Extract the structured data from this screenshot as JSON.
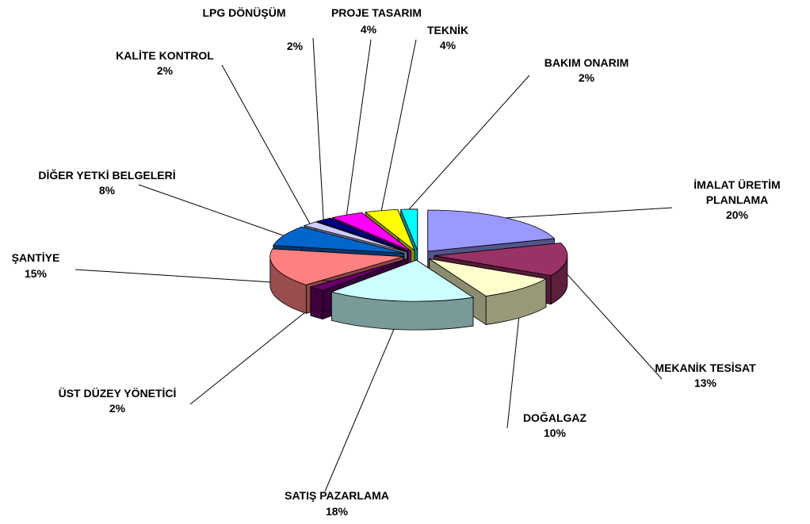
{
  "chart_data": {
    "type": "pie3d",
    "categories": [
      "İMALAT ÜRETİM PLANLAMA",
      "MEKANİK TESİSAT",
      "DOĞALGAZ",
      "SATIŞ PAZARLAMA",
      "ÜST DÜZEY YÖNETİCİ",
      "ŞANTİYE",
      "DİĞER YETKİ BELGELERİ",
      "KALİTE KONTROL",
      "LPG DÖNÜŞÜM",
      "PROJE TASARIM",
      "TEKNİK",
      "BAKIM ONARIM"
    ],
    "values": [
      20,
      13,
      10,
      18,
      2,
      15,
      8,
      2,
      2,
      4,
      4,
      2
    ],
    "value_labels": [
      "20%",
      "13%",
      "10%",
      "18%",
      "2%",
      "15%",
      "8%",
      "2%",
      "2%",
      "4%",
      "4%",
      "2%"
    ],
    "colors": [
      "#9999ff",
      "#993366",
      "#ffffcc",
      "#ccffff",
      "#660066",
      "#ff8080",
      "#0066cc",
      "#ccccff",
      "#000080",
      "#ff00ff",
      "#ffff00",
      "#00ffff"
    ]
  }
}
